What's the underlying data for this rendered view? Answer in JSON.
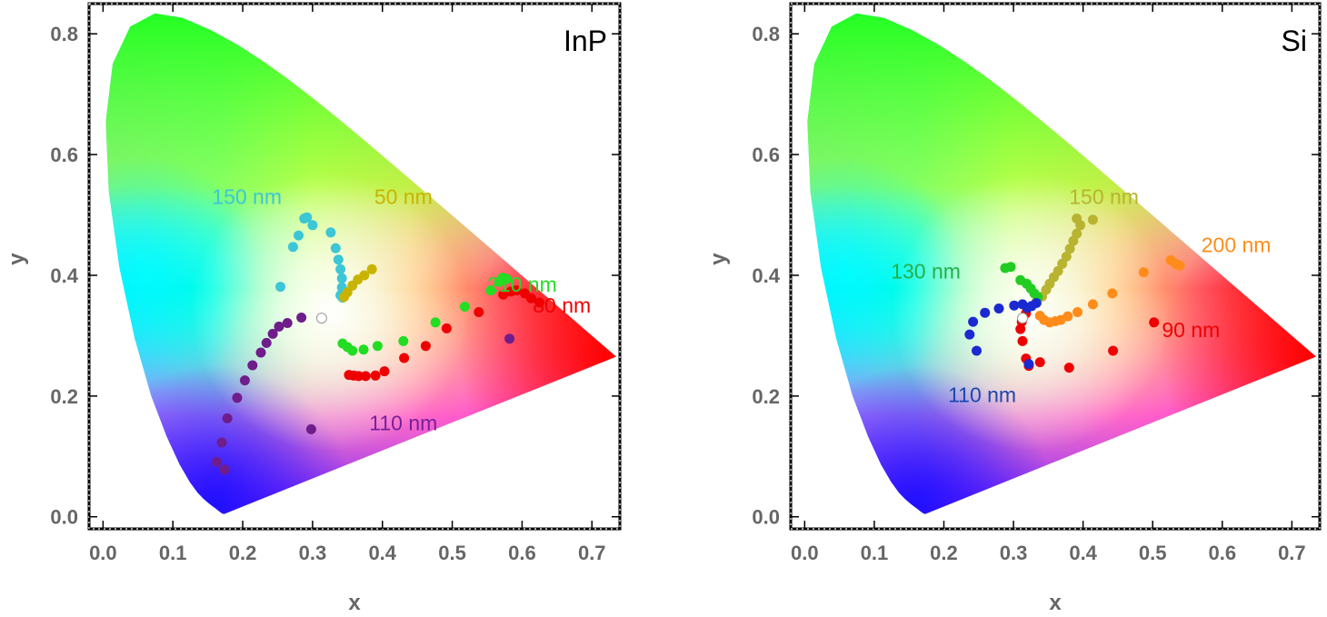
{
  "chart_data": [
    {
      "type": "scatter",
      "panel_label": "InP",
      "xlabel": "x",
      "ylabel": "y",
      "xlim": [
        -0.02,
        0.74
      ],
      "ylim": [
        -0.02,
        0.85
      ],
      "xticks": [
        "0.0",
        "0.1",
        "0.2",
        "0.3",
        "0.4",
        "0.5",
        "0.6",
        "0.7"
      ],
      "yticks": [
        "0.0",
        "0.2",
        "0.4",
        "0.6",
        "0.8"
      ],
      "white_point": [
        0.313,
        0.329
      ],
      "annotations": [
        {
          "text": "150 nm",
          "x": 0.206,
          "y": 0.53,
          "color": "#3cc6d6"
        },
        {
          "text": "50 nm",
          "x": 0.43,
          "y": 0.53,
          "color": "#c8b400"
        },
        {
          "text": "210 nm",
          "x": 0.6,
          "y": 0.385,
          "color": "#22dd22"
        },
        {
          "text": "80 nm",
          "x": 0.657,
          "y": 0.35,
          "color": "#ee0000"
        },
        {
          "text": "110 nm",
          "x": 0.43,
          "y": 0.155,
          "color": "#7a1f99"
        }
      ],
      "series": [
        {
          "color": "#3cc6d6",
          "points": [
            [
              0.254,
              0.381
            ],
            [
              0.272,
              0.447
            ],
            [
              0.28,
              0.466
            ],
            [
              0.288,
              0.494
            ],
            [
              0.292,
              0.496
            ],
            [
              0.3,
              0.483
            ],
            [
              0.326,
              0.471
            ],
            [
              0.333,
              0.445
            ],
            [
              0.337,
              0.426
            ],
            [
              0.34,
              0.41
            ],
            [
              0.342,
              0.395
            ],
            [
              0.342,
              0.38
            ],
            [
              0.34,
              0.367
            ],
            [
              0.343,
              0.363
            ]
          ]
        },
        {
          "color": "#c8b400",
          "points": [
            [
              0.345,
              0.364
            ],
            [
              0.35,
              0.372
            ],
            [
              0.357,
              0.383
            ],
            [
              0.365,
              0.393
            ],
            [
              0.374,
              0.4
            ],
            [
              0.385,
              0.41
            ]
          ]
        },
        {
          "color": "#22dd22",
          "points": [
            [
              0.343,
              0.287
            ],
            [
              0.35,
              0.281
            ],
            [
              0.357,
              0.275
            ],
            [
              0.373,
              0.277
            ],
            [
              0.393,
              0.283
            ],
            [
              0.43,
              0.291
            ],
            [
              0.476,
              0.322
            ],
            [
              0.518,
              0.348
            ],
            [
              0.555,
              0.375
            ],
            [
              0.567,
              0.389
            ],
            [
              0.572,
              0.396
            ],
            [
              0.578,
              0.394
            ]
          ]
        },
        {
          "color": "#ee0000",
          "points": [
            [
              0.352,
              0.235
            ],
            [
              0.359,
              0.234
            ],
            [
              0.366,
              0.233
            ],
            [
              0.376,
              0.233
            ],
            [
              0.39,
              0.234
            ],
            [
              0.403,
              0.241
            ],
            [
              0.431,
              0.263
            ],
            [
              0.462,
              0.283
            ],
            [
              0.492,
              0.312
            ],
            [
              0.538,
              0.339
            ],
            [
              0.573,
              0.368
            ],
            [
              0.592,
              0.375
            ],
            [
              0.604,
              0.37
            ],
            [
              0.613,
              0.362
            ],
            [
              0.625,
              0.355
            ],
            [
              0.584,
              0.373
            ]
          ]
        },
        {
          "color": "#6f1d8a",
          "points": [
            [
              0.163,
              0.091
            ],
            [
              0.174,
              0.078
            ],
            [
              0.17,
              0.123
            ],
            [
              0.178,
              0.163
            ],
            [
              0.192,
              0.197
            ],
            [
              0.203,
              0.226
            ],
            [
              0.214,
              0.251
            ],
            [
              0.226,
              0.272
            ],
            [
              0.234,
              0.288
            ],
            [
              0.243,
              0.303
            ],
            [
              0.252,
              0.315
            ],
            [
              0.264,
              0.321
            ],
            [
              0.284,
              0.33
            ],
            [
              0.298,
              0.145
            ],
            [
              0.582,
              0.295
            ]
          ]
        }
      ]
    },
    {
      "type": "scatter",
      "panel_label": "Si",
      "xlabel": "x",
      "ylabel": "y",
      "xlim": [
        -0.02,
        0.74
      ],
      "ylim": [
        -0.02,
        0.85
      ],
      "xticks": [
        "0.0",
        "0.1",
        "0.2",
        "0.3",
        "0.4",
        "0.5",
        "0.6",
        "0.7"
      ],
      "yticks": [
        "0.0",
        "0.2",
        "0.4",
        "0.6",
        "0.8"
      ],
      "white_point": [
        0.313,
        0.329
      ],
      "annotations": [
        {
          "text": "150 nm",
          "x": 0.43,
          "y": 0.53,
          "color": "#b8b431"
        },
        {
          "text": "200 nm",
          "x": 0.62,
          "y": 0.45,
          "color": "#ff8c1a"
        },
        {
          "text": "130 nm",
          "x": 0.174,
          "y": 0.407,
          "color": "#22b04a"
        },
        {
          "text": "90 nm",
          "x": 0.555,
          "y": 0.31,
          "color": "#ee0000"
        },
        {
          "text": "110 nm",
          "x": 0.255,
          "y": 0.202,
          "color": "#1a47b0"
        }
      ],
      "series": [
        {
          "color": "#b8b431",
          "points": [
            [
              0.333,
              0.356
            ],
            [
              0.341,
              0.365
            ],
            [
              0.347,
              0.376
            ],
            [
              0.352,
              0.386
            ],
            [
              0.358,
              0.397
            ],
            [
              0.364,
              0.407
            ],
            [
              0.37,
              0.419
            ],
            [
              0.376,
              0.431
            ],
            [
              0.381,
              0.444
            ],
            [
              0.386,
              0.457
            ],
            [
              0.391,
              0.469
            ],
            [
              0.396,
              0.483
            ],
            [
              0.391,
              0.494
            ],
            [
              0.414,
              0.492
            ]
          ]
        },
        {
          "color": "#ff8c1a",
          "points": [
            [
              0.338,
              0.333
            ],
            [
              0.344,
              0.326
            ],
            [
              0.352,
              0.322
            ],
            [
              0.36,
              0.324
            ],
            [
              0.368,
              0.326
            ],
            [
              0.378,
              0.332
            ],
            [
              0.392,
              0.339
            ],
            [
              0.414,
              0.352
            ],
            [
              0.442,
              0.37
            ],
            [
              0.487,
              0.405
            ],
            [
              0.526,
              0.425
            ],
            [
              0.533,
              0.419
            ],
            [
              0.539,
              0.416
            ]
          ]
        },
        {
          "color": "#22cc22",
          "points": [
            [
              0.288,
              0.412
            ],
            [
              0.296,
              0.414
            ],
            [
              0.31,
              0.392
            ],
            [
              0.319,
              0.386
            ],
            [
              0.325,
              0.378
            ],
            [
              0.33,
              0.37
            ],
            [
              0.335,
              0.364
            ]
          ]
        },
        {
          "color": "#ee0000",
          "points": [
            [
              0.31,
              0.311
            ],
            [
              0.312,
              0.323
            ],
            [
              0.318,
              0.337
            ],
            [
              0.313,
              0.291
            ],
            [
              0.318,
              0.262
            ],
            [
              0.322,
              0.25
            ],
            [
              0.338,
              0.256
            ],
            [
              0.38,
              0.247
            ],
            [
              0.443,
              0.275
            ],
            [
              0.502,
              0.322
            ]
          ]
        },
        {
          "color": "#1a2ad0",
          "points": [
            [
              0.247,
              0.275
            ],
            [
              0.237,
              0.302
            ],
            [
              0.242,
              0.323
            ],
            [
              0.259,
              0.338
            ],
            [
              0.279,
              0.345
            ],
            [
              0.301,
              0.35
            ],
            [
              0.313,
              0.352
            ],
            [
              0.32,
              0.346
            ],
            [
              0.326,
              0.349
            ],
            [
              0.333,
              0.354
            ],
            [
              0.322,
              0.253
            ]
          ]
        }
      ]
    }
  ]
}
